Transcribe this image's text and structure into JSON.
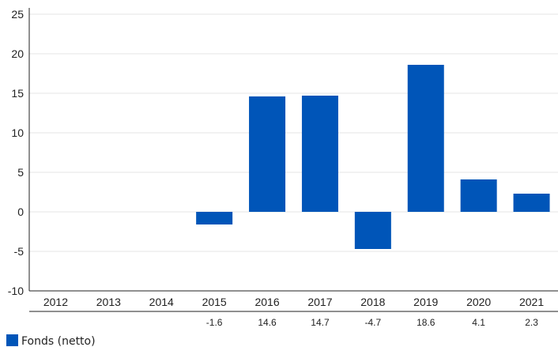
{
  "chart_data": {
    "type": "bar",
    "categories": [
      "2012",
      "2013",
      "2014",
      "2015",
      "2016",
      "2017",
      "2018",
      "2019",
      "2020",
      "2021"
    ],
    "series": [
      {
        "name": "Fonds (netto)",
        "values": [
          null,
          null,
          null,
          -1.6,
          14.6,
          14.7,
          -4.7,
          18.6,
          4.1,
          2.3
        ],
        "labels": [
          "",
          "",
          "",
          "-1.6",
          "14.6",
          "14.7",
          "-4.7",
          "18.6",
          "4.1",
          "2.3"
        ],
        "color": "#0055b8"
      }
    ],
    "ylim": [
      -10,
      25
    ],
    "yticks": [
      "-10",
      "-5",
      "0",
      "5",
      "10",
      "15",
      "20",
      "25"
    ],
    "grid": true,
    "legend": "bottom-left",
    "data_table": true
  }
}
